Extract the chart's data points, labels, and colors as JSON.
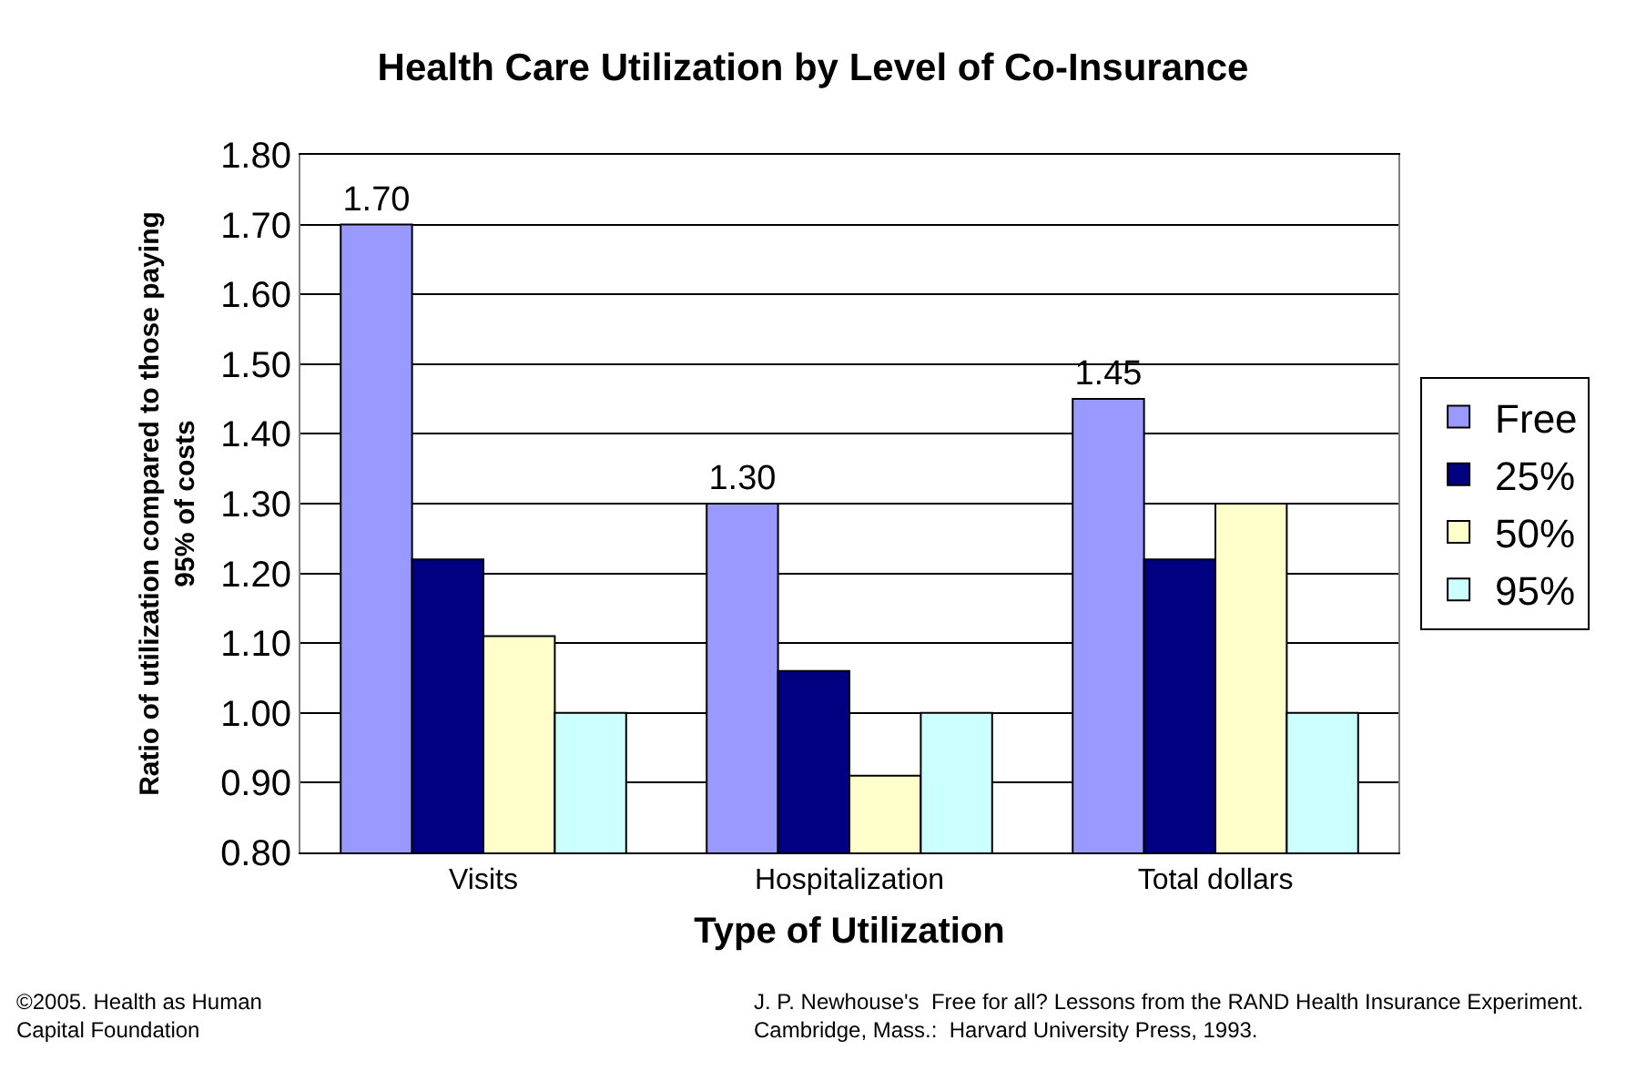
{
  "chart_data": {
    "type": "bar",
    "title": "Health Care Utilization by Level of Co-Insurance",
    "xlabel": "Type of Utilization",
    "ylabel": "Ratio of utilization compared to those paying\n95% of costs",
    "categories": [
      "Visits",
      "Hospitalization",
      "Total dollars"
    ],
    "series": [
      {
        "name": "Free",
        "color": "#9999ff",
        "values": [
          1.7,
          1.3,
          1.45
        ],
        "value_labels": [
          "1.70",
          "1.30",
          "1.45"
        ]
      },
      {
        "name": "25%",
        "color": "#000080",
        "values": [
          1.22,
          1.06,
          1.22
        ]
      },
      {
        "name": "50%",
        "color": "#ffffcc",
        "values": [
          1.11,
          0.91,
          1.3
        ]
      },
      {
        "name": "95%",
        "color": "#ccffff",
        "values": [
          1.0,
          1.0,
          1.0
        ]
      }
    ],
    "ylim": [
      0.8,
      1.8
    ],
    "yticks": [
      {
        "value": 0.8,
        "label": "0.80"
      },
      {
        "value": 0.9,
        "label": "0.90"
      },
      {
        "value": 1.0,
        "label": "1.00"
      },
      {
        "value": 1.1,
        "label": "1.10"
      },
      {
        "value": 1.2,
        "label": "1.20"
      },
      {
        "value": 1.3,
        "label": "1.30"
      },
      {
        "value": 1.4,
        "label": "1.40"
      },
      {
        "value": 1.5,
        "label": "1.50"
      },
      {
        "value": 1.6,
        "label": "1.60"
      },
      {
        "value": 1.7,
        "label": "1.70"
      },
      {
        "value": 1.8,
        "label": "1.80"
      }
    ],
    "grid": "y",
    "legend": "right",
    "annotations": [
      "©2005. Health as Human\nCapital Foundation",
      "J. P. Newhouse's  Free for all? Lessons from the RAND Health Insurance Experiment.\nCambridge, Mass.:  Harvard University Press, 1993."
    ]
  }
}
